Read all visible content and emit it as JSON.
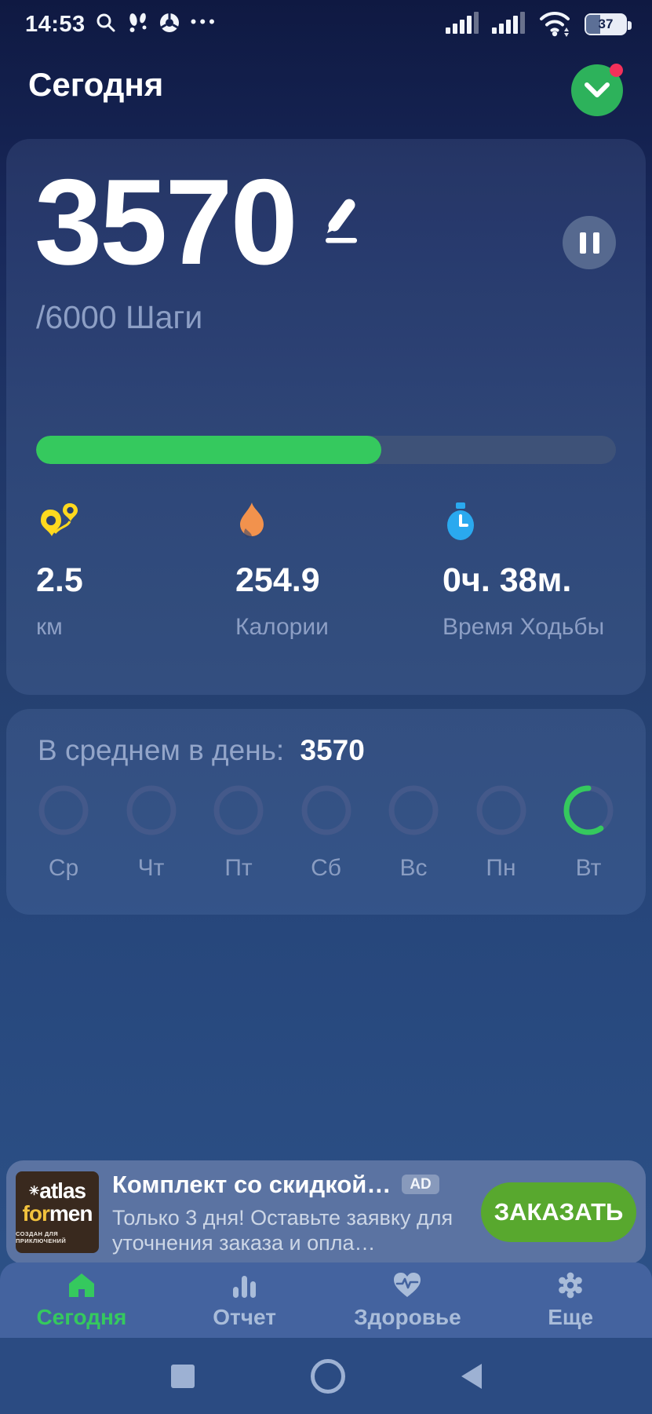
{
  "status_bar": {
    "time": "14:53",
    "battery_percent": "37"
  },
  "header": {
    "title": "Сегодня"
  },
  "steps_card": {
    "steps": "3570",
    "goal_text": "/6000 Шаги",
    "progress_pct": 59.5,
    "stats": [
      {
        "icon": "distance-pins-icon",
        "value": "2.5",
        "label": "км",
        "color": "#ffd91e"
      },
      {
        "icon": "flame-icon",
        "value": "254.9",
        "label": "Калории",
        "color": "#f2924d"
      },
      {
        "icon": "stopwatch-icon",
        "value": "0ч. 38м.",
        "label": "Время Ходьбы",
        "color": "#2aa9ef"
      }
    ]
  },
  "week_card": {
    "avg_label": "В среднем в день:",
    "avg_value": "3570",
    "days": [
      {
        "label": "Ср",
        "progress_pct": 0
      },
      {
        "label": "Чт",
        "progress_pct": 0
      },
      {
        "label": "Пт",
        "progress_pct": 0
      },
      {
        "label": "Сб",
        "progress_pct": 0
      },
      {
        "label": "Вс",
        "progress_pct": 0
      },
      {
        "label": "Пн",
        "progress_pct": 0
      },
      {
        "label": "Вт",
        "progress_pct": 59.5
      }
    ]
  },
  "ad_banner": {
    "logo_line1": "atlas",
    "logo_for": "for",
    "logo_men": "men",
    "logo_caption": "СОЗДАН ДЛЯ ПРИКЛЮЧЕНИЙ",
    "title": "Комплект со скидкой…",
    "ad_badge": "AD",
    "body": "Только 3 дня! Оставьте заявку для уточнения заказа и опла…",
    "cta": "ЗАКАЗАТЬ"
  },
  "tab_bar": {
    "items": [
      {
        "label": "Сегодня",
        "active": true
      },
      {
        "label": "Отчет",
        "active": false
      },
      {
        "label": "Здоровье",
        "active": false
      },
      {
        "label": "Еще",
        "active": false
      }
    ]
  },
  "colors": {
    "accent_green": "#35c95e",
    "cta_green": "#58a82e",
    "pause_circle": "#56698f",
    "progress_track": "#3e5278",
    "muted_text": "#8d9fc5",
    "alert_red": "#f4305a",
    "background_top": "#0f1942",
    "background_bottom": "#2f558b"
  }
}
